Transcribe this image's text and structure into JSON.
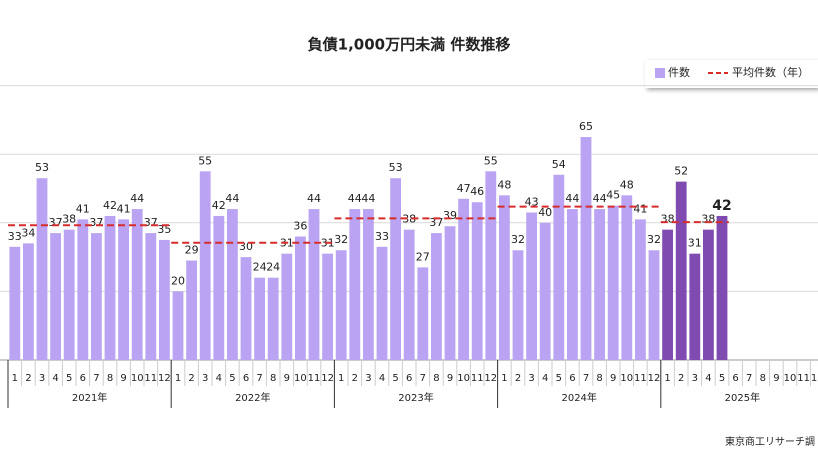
{
  "chart_data": {
    "type": "bar",
    "title": "負債1,000万円未満 件数推移",
    "source": "東京商工リサーチ調",
    "years": [
      "2021年",
      "2022年",
      "2023年",
      "2024年",
      "2025年"
    ],
    "categories": [
      "1",
      "2",
      "3",
      "4",
      "5",
      "6",
      "7",
      "8",
      "9",
      "10",
      "11",
      "12",
      "1",
      "2",
      "3",
      "4",
      "5",
      "6",
      "7",
      "8",
      "9",
      "10",
      "11",
      "12",
      "1",
      "2",
      "3",
      "4",
      "5",
      "6",
      "7",
      "8",
      "9",
      "10",
      "11",
      "12",
      "1",
      "2",
      "3",
      "4",
      "5",
      "6",
      "7",
      "8",
      "9",
      "10",
      "11",
      "12",
      "1",
      "2",
      "3",
      "4",
      "5",
      "6",
      "7",
      "8",
      "9",
      "10",
      "11",
      "12"
    ],
    "series": [
      {
        "name": "件数",
        "color": "#b9a3f2",
        "recent_color": "#7f4bb0",
        "values": [
          33,
          34,
          53,
          37,
          38,
          41,
          37,
          42,
          41,
          44,
          37,
          35,
          20,
          29,
          55,
          42,
          44,
          30,
          24,
          24,
          31,
          36,
          44,
          31,
          32,
          44,
          44,
          33,
          53,
          38,
          27,
          37,
          39,
          47,
          46,
          55,
          48,
          32,
          43,
          40,
          54,
          44,
          65,
          44,
          45,
          48,
          41,
          32,
          38,
          52,
          31,
          38,
          42,
          null,
          null,
          null,
          null,
          null,
          null,
          null
        ]
      }
    ],
    "average_series": {
      "name": "平均件数（年）",
      "color": "#d62c2c",
      "values": [
        39.3,
        34.2,
        41.3,
        44.7,
        40.2
      ]
    },
    "ylim": [
      0,
      80
    ],
    "yticks": [
      0,
      20,
      40,
      60,
      80
    ],
    "grid": true
  }
}
